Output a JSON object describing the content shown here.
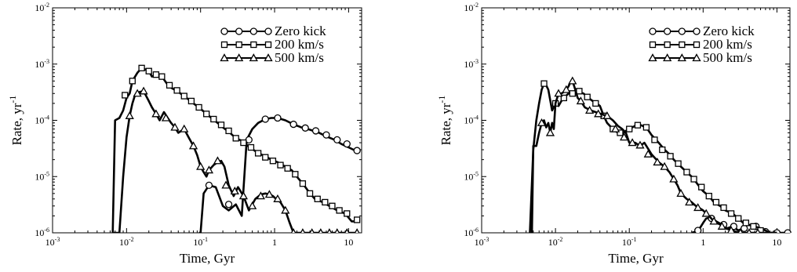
{
  "chart_data": [
    {
      "type": "line",
      "xlabel": "Time, Gyr",
      "ylabel": "Rate, yr",
      "ylabel_sup": "-1",
      "x_scale": "log",
      "y_scale": "log",
      "xlim": [
        0.001,
        15
      ],
      "ylim": [
        1e-06,
        0.01
      ],
      "x_ticks": [
        {
          "base": "10",
          "exp": "-3",
          "value": 0.001
        },
        {
          "base": "10",
          "exp": "-2",
          "value": 0.01
        },
        {
          "base": "10",
          "exp": "-1",
          "value": 0.1
        },
        {
          "base": "1",
          "exp": "",
          "value": 1
        },
        {
          "base": "10",
          "exp": "",
          "value": 10
        }
      ],
      "y_ticks": [
        {
          "base": "10",
          "exp": "-6",
          "value": 1e-06
        },
        {
          "base": "10",
          "exp": "-5",
          "value": 1e-05
        },
        {
          "base": "10",
          "exp": "-4",
          "value": 0.0001
        },
        {
          "base": "10",
          "exp": "-3",
          "value": 0.001
        },
        {
          "base": "10",
          "exp": "-2",
          "value": 0.01
        }
      ],
      "legend_position": "top-right",
      "series": [
        {
          "name": "Zero kick",
          "marker": "circle",
          "x": [
            0.095,
            0.1,
            0.11,
            0.13,
            0.16,
            0.2,
            0.24,
            0.3,
            0.36,
            0.42,
            0.5,
            0.6,
            0.75,
            0.9,
            1.1,
            1.4,
            1.8,
            2.3,
            3,
            4,
            5,
            6.5,
            8,
            10,
            13
          ],
          "y": [
            1e-06,
            1e-06,
            5e-06,
            7e-06,
            6.5e-06,
            3e-06,
            2.5e-06,
            3.2e-06,
            2e-06,
            4.5e-05,
            7e-05,
            9e-05,
            0.000105,
            0.00011,
            0.00011,
            0.0001,
            8.5e-05,
            7.5e-05,
            6.8e-05,
            6e-05,
            5.2e-05,
            4.5e-05,
            3.8e-05,
            3.3e-05,
            2.8e-05
          ],
          "markers_x": [
            0.13,
            0.24,
            0.45,
            0.75,
            1.1,
            1.8,
            2.6,
            3.6,
            5,
            7,
            9.5,
            13
          ],
          "markers_y": [
            7e-06,
            3.2e-06,
            4.5e-05,
            0.000105,
            0.00011,
            8.5e-05,
            7.3e-05,
            6.5e-05,
            5.5e-05,
            4.5e-05,
            3.8e-05,
            2.9e-05
          ]
        },
        {
          "name": "200 km/s",
          "marker": "square",
          "x": [
            0.0065,
            0.007,
            0.008,
            0.009,
            0.01,
            0.011,
            0.012,
            0.014,
            0.016,
            0.018,
            0.02,
            0.022,
            0.025,
            0.028,
            0.03,
            0.035,
            0.04,
            0.05,
            0.06,
            0.07,
            0.08,
            0.1,
            0.12,
            0.14,
            0.17,
            0.2,
            0.25,
            0.3,
            0.35,
            0.4,
            0.5,
            0.6,
            0.75,
            0.9,
            1.1,
            1.4,
            1.7,
            2,
            2.5,
            3,
            3.5,
            4.5,
            5.5,
            7,
            9,
            11,
            13
          ],
          "y": [
            1e-06,
            0.0001,
            0.00011,
            0.00015,
            0.00025,
            0.0003,
            0.0005,
            0.0007,
            0.00085,
            0.0008,
            0.00075,
            0.0006,
            0.00065,
            0.0006,
            0.0006,
            0.00045,
            0.00038,
            0.00032,
            0.00027,
            0.00023,
            0.0002,
            0.00016,
            0.00013,
            0.00011,
            9e-05,
            7.5e-05,
            6e-05,
            4.8e-05,
            4.4e-05,
            3.8e-05,
            3.1e-05,
            2.6e-05,
            2.3e-05,
            2e-05,
            1.8e-05,
            1.5e-05,
            1.3e-05,
            1e-05,
            7e-06,
            5e-06,
            4e-06,
            3.5e-06,
            3e-06,
            2.5e-06,
            2.2e-06,
            1.6e-06,
            1.6e-06
          ],
          "markers_x": [
            0.0095,
            0.012,
            0.016,
            0.02,
            0.025,
            0.03,
            0.038,
            0.048,
            0.06,
            0.075,
            0.095,
            0.12,
            0.15,
            0.19,
            0.24,
            0.3,
            0.38,
            0.48,
            0.6,
            0.75,
            0.95,
            1.2,
            1.5,
            1.9,
            2.4,
            3,
            3.8,
            4.8,
            6,
            7.5,
            9.5,
            13
          ],
          "markers_y": [
            0.00028,
            0.0005,
            0.00085,
            0.00075,
            0.00065,
            0.0006,
            0.00042,
            0.00034,
            0.00027,
            0.00022,
            0.00017,
            0.00013,
            0.000105,
            8.3e-05,
            6.5e-05,
            4.8e-05,
            4e-05,
            3.3e-05,
            2.6e-05,
            2.2e-05,
            1.9e-05,
            1.6e-05,
            1.4e-05,
            1.1e-05,
            7.5e-06,
            5e-06,
            4e-06,
            3.5e-06,
            3e-06,
            2.5e-06,
            2.2e-06,
            1.7e-06
          ]
        },
        {
          "name": "500 km/s",
          "marker": "triangle",
          "x": [
            0.0065,
            0.008,
            0.009,
            0.01,
            0.011,
            0.012,
            0.013,
            0.015,
            0.017,
            0.02,
            0.022,
            0.025,
            0.028,
            0.032,
            0.036,
            0.04,
            0.045,
            0.05,
            0.06,
            0.07,
            0.08,
            0.09,
            0.1,
            0.11,
            0.12,
            0.13,
            0.15,
            0.17,
            0.19,
            0.21,
            0.24,
            0.28,
            0.32,
            0.38,
            0.45,
            0.55,
            0.65,
            0.75,
            0.85,
            0.95,
            1.05,
            1.2,
            1.4,
            1.6,
            1.8,
            2.2,
            3,
            5,
            8,
            13
          ],
          "y": [
            1e-06,
            1e-06,
            1e-05,
            5e-05,
            0.00012,
            0.0002,
            0.00028,
            0.00032,
            0.00033,
            0.00022,
            0.00017,
            0.00013,
            0.0001,
            0.00014,
            0.00011,
            9e-05,
            7.5e-05,
            6e-05,
            7e-05,
            4.8e-05,
            3.5e-05,
            2.4e-05,
            1.5e-05,
            1.2e-05,
            1e-05,
            1.3e-05,
            1.6e-05,
            1.8e-05,
            1.9e-05,
            1.5e-05,
            7e-06,
            4.5e-06,
            6.5e-06,
            4.5e-06,
            2.5e-06,
            4e-06,
            4.8e-06,
            5e-06,
            4.8e-06,
            4.5e-06,
            4e-06,
            3.5e-06,
            2.5e-06,
            1.5e-06,
            1e-06,
            1e-06,
            1e-06,
            1e-06,
            1e-06,
            1e-06
          ],
          "markers_x": [
            0.011,
            0.014,
            0.017,
            0.025,
            0.034,
            0.045,
            0.06,
            0.08,
            0.1,
            0.13,
            0.17,
            0.22,
            0.29,
            0.38,
            0.5,
            0.65,
            0.85,
            1.1,
            1.4,
            1.8,
            2.4,
            3.2,
            4.2,
            5.5,
            7,
            9.5,
            13
          ],
          "markers_y": [
            0.00012,
            0.0003,
            0.00033,
            0.00013,
            0.00011,
            7.5e-05,
            7e-05,
            3.5e-05,
            1.5e-05,
            1.3e-05,
            1.9e-05,
            7e-06,
            5.5e-06,
            4.5e-06,
            3e-06,
            4.5e-06,
            4.8e-06,
            4e-06,
            2.5e-06,
            1e-06,
            1e-06,
            1e-06,
            1e-06,
            1e-06,
            1e-06,
            1e-06,
            1e-06
          ]
        }
      ]
    },
    {
      "type": "line",
      "xlabel": "Time, Gyr",
      "ylabel": "Rate, yr",
      "ylabel_sup": "-1",
      "x_scale": "log",
      "y_scale": "log",
      "xlim": [
        0.001,
        15
      ],
      "ylim": [
        1e-06,
        0.01
      ],
      "x_ticks": [
        {
          "base": "10",
          "exp": "-3",
          "value": 0.001
        },
        {
          "base": "10",
          "exp": "-2",
          "value": 0.01
        },
        {
          "base": "10",
          "exp": "-1",
          "value": 0.1
        },
        {
          "base": "1",
          "exp": "",
          "value": 1
        },
        {
          "base": "10",
          "exp": "",
          "value": 10
        }
      ],
      "y_ticks": [
        {
          "base": "10",
          "exp": "-6",
          "value": 1e-06
        },
        {
          "base": "10",
          "exp": "-5",
          "value": 1e-05
        },
        {
          "base": "10",
          "exp": "-4",
          "value": 0.0001
        },
        {
          "base": "10",
          "exp": "-3",
          "value": 0.001
        },
        {
          "base": "10",
          "exp": "-2",
          "value": 0.01
        }
      ],
      "legend_position": "top-right",
      "series": [
        {
          "name": "Zero kick",
          "marker": "circle",
          "x": [
            0.7,
            0.8,
            0.9,
            1,
            1.1,
            1.3,
            1.5,
            1.8,
            2.1,
            2.5,
            3,
            3.5,
            4,
            5,
            6,
            7,
            8,
            9,
            10,
            11,
            13,
            15
          ],
          "y": [
            1e-06,
            1.05e-06,
            1.2e-06,
            1.5e-06,
            1.8e-06,
            1.9e-06,
            1.6e-06,
            1.4e-06,
            1.2e-06,
            1.3e-06,
            1.1e-06,
            1.2e-06,
            1.4e-06,
            1.3e-06,
            1.2e-06,
            1.1e-06,
            1e-06,
            1e-06,
            1e-06,
            1e-06,
            1e-06,
            1e-06
          ],
          "markers_x": [
            0.85,
            1.3,
            1.9,
            2.6,
            3.6,
            5.2,
            7,
            10,
            14
          ],
          "markers_y": [
            1.1e-06,
            1.8e-06,
            1.4e-06,
            1.3e-06,
            1.2e-06,
            1.3e-06,
            1.05e-06,
            1e-06,
            1e-06
          ]
        },
        {
          "name": "200 km/s",
          "marker": "square",
          "x": [
            0.0045,
            0.005,
            0.0055,
            0.006,
            0.0065,
            0.007,
            0.0075,
            0.008,
            0.009,
            0.01,
            0.011,
            0.012,
            0.013,
            0.015,
            0.017,
            0.019,
            0.021,
            0.024,
            0.028,
            0.032,
            0.036,
            0.04,
            0.045,
            0.05,
            0.06,
            0.07,
            0.08,
            0.09,
            0.1,
            0.12,
            0.14,
            0.17,
            0.2,
            0.25,
            0.3,
            0.35,
            0.4,
            0.5,
            0.6,
            0.7,
            0.8,
            0.9,
            1,
            1.2,
            1.4,
            1.7,
            2,
            2.5,
            3,
            3.5,
            4,
            5,
            6,
            7,
            8,
            10
          ],
          "y": [
            1e-06,
            3e-05,
            0.0001,
            0.0002,
            0.00035,
            0.00045,
            0.00042,
            0.00035,
            0.00015,
            0.0002,
            0.00018,
            0.00022,
            0.00025,
            0.0003,
            0.0003,
            0.00035,
            0.00032,
            0.0003,
            0.00025,
            0.00022,
            0.0002,
            0.00018,
            0.00012,
            9e-05,
            7e-05,
            6e-05,
            5.5e-05,
            6.5e-05,
            7e-05,
            8e-05,
            8.3e-05,
            7.5e-05,
            5.5e-05,
            4e-05,
            3e-05,
            2.5e-05,
            2e-05,
            1.5e-05,
            1.2e-05,
            1e-05,
            8e-06,
            6.5e-06,
            5.5e-06,
            4.5e-06,
            3.5e-06,
            3e-06,
            2.5e-06,
            2.2e-06,
            1.8e-06,
            1.5e-06,
            1.4e-06,
            1.3e-06,
            1.2e-06,
            1.1e-06,
            1e-06,
            1e-06
          ],
          "markers_x": [
            0.007,
            0.01,
            0.013,
            0.017,
            0.021,
            0.027,
            0.035,
            0.045,
            0.06,
            0.075,
            0.1,
            0.13,
            0.17,
            0.22,
            0.28,
            0.36,
            0.46,
            0.6,
            0.75,
            0.95,
            1.2,
            1.5,
            1.9,
            2.4,
            3,
            3.8,
            4.8,
            6
          ],
          "markers_y": [
            0.00045,
            0.0002,
            0.00025,
            0.0003,
            0.00033,
            0.00026,
            0.0002,
            0.00012,
            7e-05,
            6e-05,
            7e-05,
            8.2e-05,
            7.5e-05,
            4.5e-05,
            3e-05,
            2.3e-05,
            1.7e-05,
            1.2e-05,
            9e-06,
            6.5e-06,
            4.5e-06,
            3.5e-06,
            2.8e-06,
            2.2e-06,
            1.8e-06,
            1.5e-06,
            1.3e-06,
            1.1e-06
          ]
        },
        {
          "name": "500 km/s",
          "marker": "triangle",
          "x": [
            0.0048,
            0.005,
            0.0055,
            0.006,
            0.0065,
            0.007,
            0.0075,
            0.008,
            0.0085,
            0.009,
            0.0095,
            0.01,
            0.011,
            0.012,
            0.013,
            0.014,
            0.015,
            0.016,
            0.017,
            0.018,
            0.02,
            0.022,
            0.025,
            0.03,
            0.035,
            0.04,
            0.05,
            0.06,
            0.07,
            0.08,
            0.09,
            0.1,
            0.12,
            0.14,
            0.16,
            0.2,
            0.25,
            0.3,
            0.35,
            0.4,
            0.45,
            0.5,
            0.6,
            0.7,
            0.8,
            1,
            1.2,
            1.4,
            1.7,
            2,
            2.5,
            3,
            4,
            5,
            6,
            8,
            10
          ],
          "y": [
            1e-06,
            3.5e-05,
            3.5e-05,
            6e-05,
            9e-05,
            0.0001,
            7.5e-05,
            9e-05,
            6e-05,
            9e-05,
            7e-05,
            0.0002,
            0.0003,
            0.0003,
            0.00032,
            0.00035,
            0.0004,
            0.00048,
            0.0005,
            0.0004,
            0.00025,
            0.00022,
            0.00017,
            0.00015,
            0.00014,
            0.00013,
            0.00012,
            0.0001,
            8e-05,
            7e-05,
            6e-05,
            4e-05,
            4e-05,
            3.5e-05,
            4e-05,
            2.5e-05,
            1.8e-05,
            1.5e-05,
            1.2e-05,
            9e-06,
            7e-06,
            5e-06,
            4e-06,
            3.5e-06,
            3e-06,
            2.5e-06,
            2e-06,
            1.6e-06,
            1.4e-06,
            1.2e-06,
            1.1e-06,
            1e-06,
            1e-06,
            1e-06,
            1e-06,
            1e-06,
            1e-06
          ],
          "markers_x": [
            0.0065,
            0.0085,
            0.011,
            0.014,
            0.017,
            0.022,
            0.029,
            0.038,
            0.05,
            0.065,
            0.085,
            0.11,
            0.14,
            0.18,
            0.24,
            0.3,
            0.4,
            0.5,
            0.65,
            0.85,
            1.1,
            1.4,
            1.8,
            2.4,
            3.2,
            4.2,
            5.5
          ],
          "markers_y": [
            9e-05,
            6e-05,
            0.0003,
            0.00035,
            0.0005,
            0.00022,
            0.00015,
            0.00013,
            0.00012,
            7e-05,
            5e-05,
            4e-05,
            3.6e-05,
            2.5e-05,
            1.8e-05,
            1.5e-05,
            9e-06,
            5e-06,
            3.5e-06,
            2.8e-06,
            2.2e-06,
            1.6e-06,
            1.3e-06,
            1.1e-06,
            1e-06,
            1e-06,
            1e-06
          ]
        }
      ]
    }
  ]
}
